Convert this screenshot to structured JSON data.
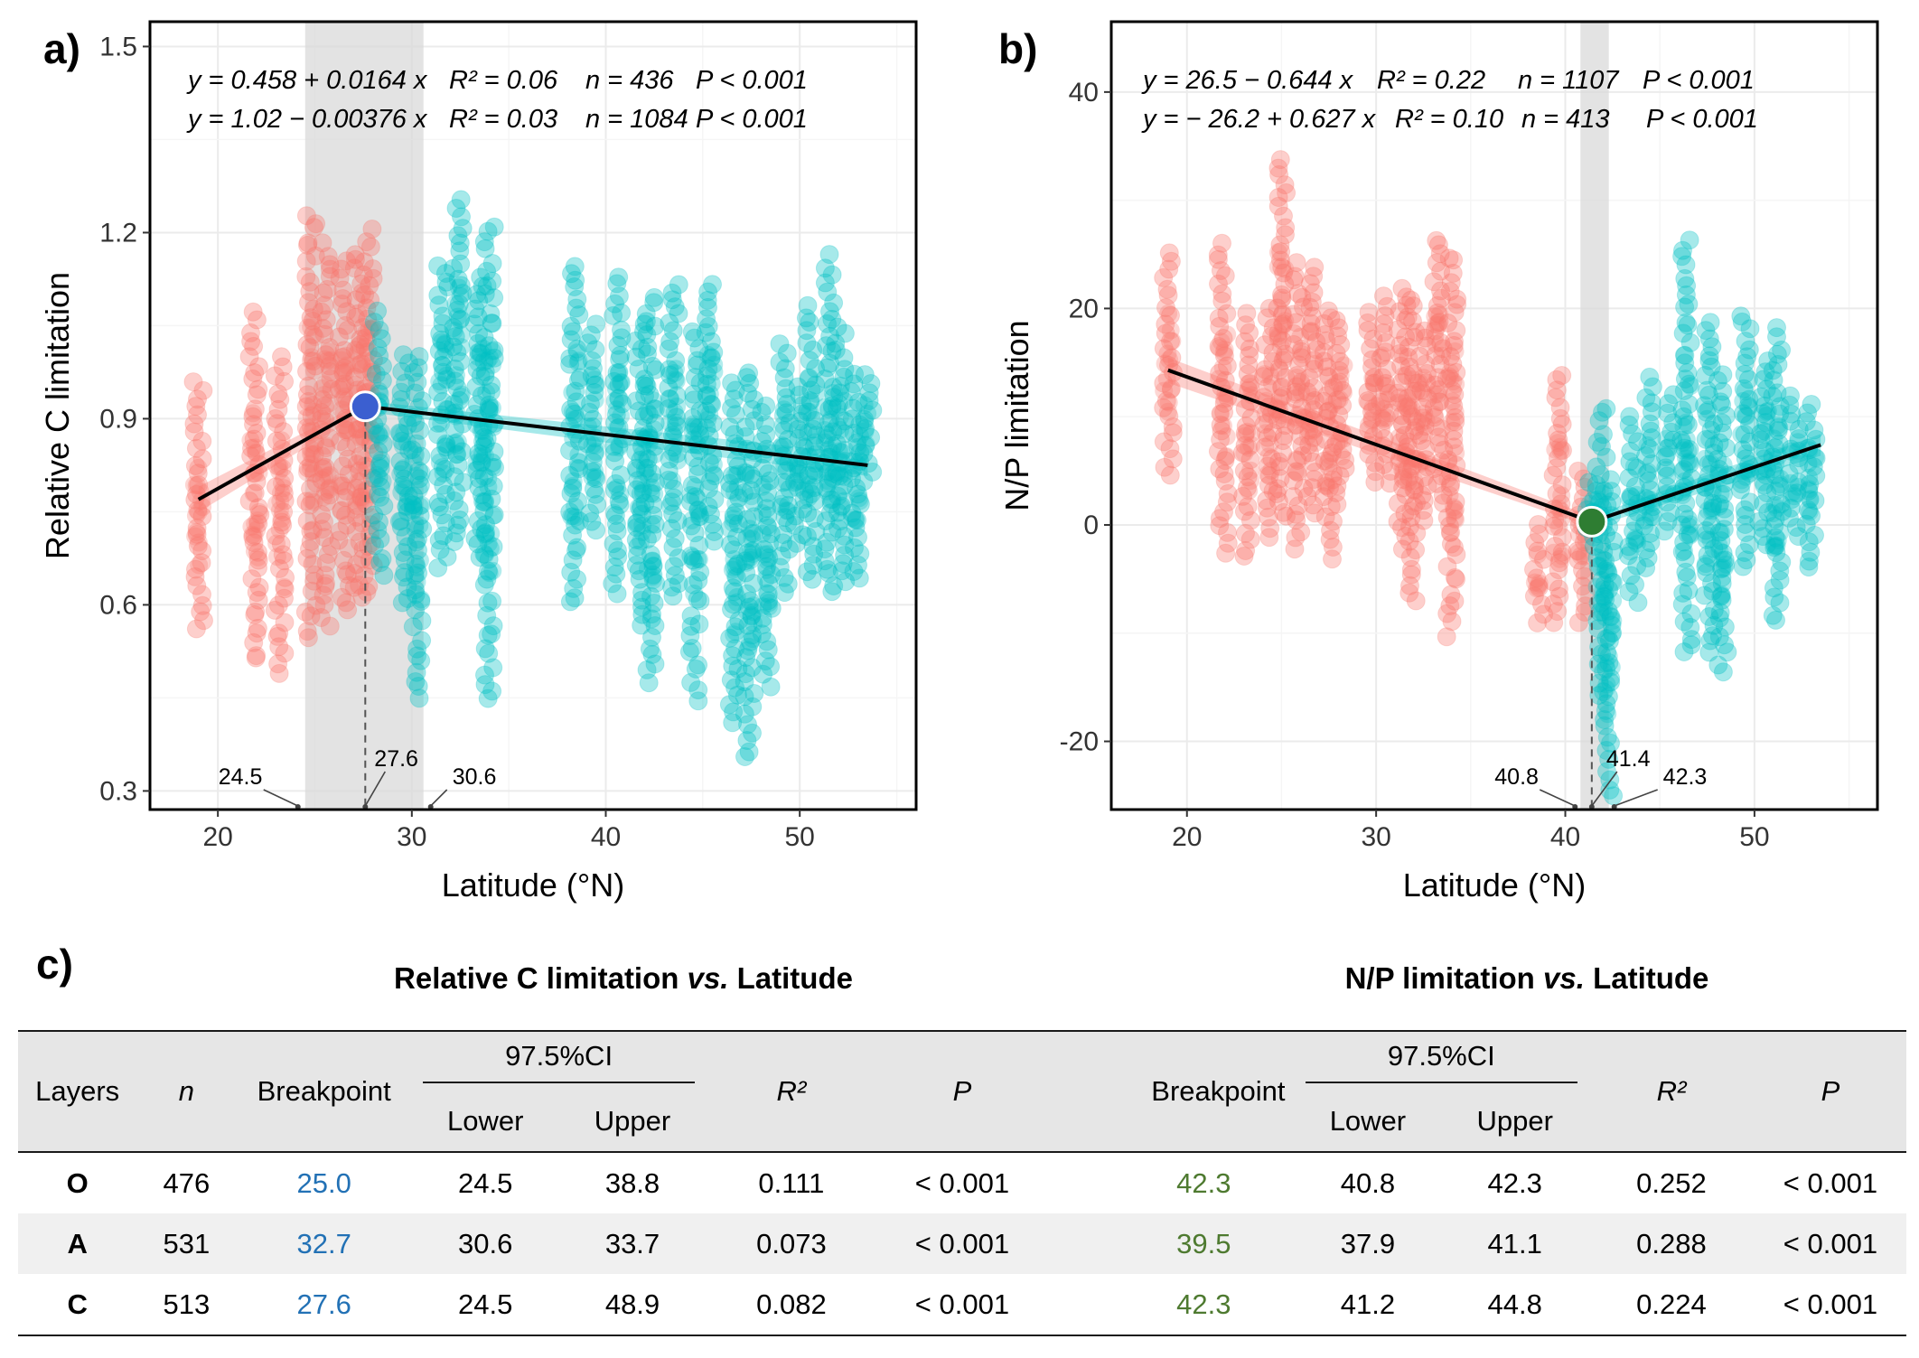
{
  "colors": {
    "red": "#f8766d",
    "cyan": "#00bfc4",
    "break_a": "#3b5fd0",
    "break_b": "#2e7d32",
    "shade": "#d9d9d9",
    "bp_c_text": "#2271b5",
    "bp_np_text": "#4e7a30"
  },
  "chart_data": [
    {
      "panel_label": "a)",
      "type": "scatter",
      "xlabel": "Latitude (°N)",
      "ylabel": "Relative C limitation",
      "xlim": [
        16.5,
        56
      ],
      "ylim": [
        0.27,
        1.54
      ],
      "xticks": [
        20,
        30,
        40,
        50
      ],
      "yticks": [
        0.3,
        0.6,
        0.9,
        1.2,
        1.5
      ],
      "ytick_labels": [
        "0.3",
        "0.6",
        "0.9",
        "1.2",
        "1.5"
      ],
      "grid": true,
      "ci_band": [
        24.5,
        30.6
      ],
      "breakpoint": {
        "x": 27.6,
        "y": 0.92
      },
      "breakpoint_labels": [
        {
          "text": "24.5",
          "x": 24.5
        },
        {
          "text": "27.6",
          "x": 27.6
        },
        {
          "text": "30.6",
          "x": 30.6
        }
      ],
      "equations": [
        {
          "y_eq": "y = 0.458 + 0.0164 x",
          "r2": "R² = 0.06",
          "n": "n = 436",
          "p": "P < 0.001"
        },
        {
          "y_eq": "y = 1.02 − 0.00376 x",
          "r2": "R² = 0.03",
          "n": "n = 1084",
          "p": "P < 0.001"
        }
      ],
      "fit_segments": [
        {
          "x": [
            19,
            27.6
          ],
          "y": [
            0.77,
            0.92
          ]
        },
        {
          "x": [
            27.6,
            53.5
          ],
          "y": [
            0.92,
            0.825
          ]
        }
      ],
      "series": [
        {
          "color_key": "red",
          "columns": [
            {
              "x": 19.0,
              "min": 0.56,
              "max": 0.96
            },
            {
              "x": 21.9,
              "min": 0.51,
              "max": 1.07
            },
            {
              "x": 23.2,
              "min": 0.49,
              "max": 1.0
            },
            {
              "x": 24.8,
              "min": 0.55,
              "max": 1.23
            },
            {
              "x": 25.6,
              "min": 0.57,
              "max": 1.18
            },
            {
              "x": 26.5,
              "min": 0.59,
              "max": 1.15
            },
            {
              "x": 27.3,
              "min": 0.61,
              "max": 1.17
            },
            {
              "x": 27.8,
              "min": 0.62,
              "max": 1.2
            }
          ]
        },
        {
          "color_key": "cyan",
          "columns": [
            {
              "x": 28.3,
              "min": 0.65,
              "max": 1.07
            },
            {
              "x": 29.6,
              "min": 0.6,
              "max": 1.0
            },
            {
              "x": 30.3,
              "min": 0.45,
              "max": 1.0
            },
            {
              "x": 31.6,
              "min": 0.66,
              "max": 1.15
            },
            {
              "x": 32.4,
              "min": 0.7,
              "max": 1.25
            },
            {
              "x": 33.5,
              "min": 0.68,
              "max": 1.13
            },
            {
              "x": 34.0,
              "min": 0.45,
              "max": 1.21
            },
            {
              "x": 38.4,
              "min": 0.6,
              "max": 1.15
            },
            {
              "x": 39.3,
              "min": 0.72,
              "max": 1.05
            },
            {
              "x": 40.6,
              "min": 0.62,
              "max": 1.13
            },
            {
              "x": 41.8,
              "min": 0.57,
              "max": 1.05
            },
            {
              "x": 42.3,
              "min": 0.48,
              "max": 1.1
            },
            {
              "x": 43.5,
              "min": 0.61,
              "max": 1.12
            },
            {
              "x": 44.6,
              "min": 0.45,
              "max": 1.04
            },
            {
              "x": 45.4,
              "min": 0.7,
              "max": 1.12
            },
            {
              "x": 46.6,
              "min": 0.41,
              "max": 0.96
            },
            {
              "x": 47.4,
              "min": 0.35,
              "max": 0.98
            },
            {
              "x": 48.3,
              "min": 0.47,
              "max": 0.92
            },
            {
              "x": 49.2,
              "min": 0.62,
              "max": 1.02
            },
            {
              "x": 50.0,
              "min": 0.7,
              "max": 0.95
            },
            {
              "x": 50.6,
              "min": 0.64,
              "max": 1.08
            },
            {
              "x": 51.5,
              "min": 0.62,
              "max": 1.16
            },
            {
              "x": 52.1,
              "min": 0.64,
              "max": 1.05
            },
            {
              "x": 52.9,
              "min": 0.64,
              "max": 0.97
            },
            {
              "x": 53.5,
              "min": 0.8,
              "max": 0.97
            }
          ]
        }
      ]
    },
    {
      "panel_label": "b)",
      "type": "scatter",
      "xlabel": "Latitude (°N)",
      "ylabel": "N/P limitation",
      "xlim": [
        16,
        56.5
      ],
      "ylim": [
        -26.3,
        46.5
      ],
      "xticks": [
        20,
        30,
        40,
        50
      ],
      "yticks": [
        -20,
        0,
        20,
        40
      ],
      "ytick_labels": [
        "-20",
        "0",
        "20",
        "40"
      ],
      "grid": true,
      "ci_band": [
        40.8,
        42.3
      ],
      "breakpoint": {
        "x": 41.4,
        "y": 0.3
      },
      "breakpoint_labels": [
        {
          "text": "40.8",
          "x": 40.8
        },
        {
          "text": "41.4",
          "x": 41.4
        },
        {
          "text": "42.3",
          "x": 42.3
        }
      ],
      "equations": [
        {
          "y_eq": "y = 26.5 − 0.644 x",
          "r2": "R² = 0.22",
          "n": "n = 1107",
          "p": "P < 0.001"
        },
        {
          "y_eq": "y = − 26.2 + 0.627 x",
          "r2": "R² = 0.10",
          "n": "n = 413",
          "p": "P < 0.001"
        }
      ],
      "fit_segments": [
        {
          "x": [
            19,
            41.4
          ],
          "y": [
            14.3,
            0.3
          ]
        },
        {
          "x": [
            41.4,
            53.5
          ],
          "y": [
            0.3,
            7.4
          ]
        }
      ],
      "series": [
        {
          "color_key": "red",
          "columns": [
            {
              "x": 19.0,
              "min": 4.5,
              "max": 25.0
            },
            {
              "x": 21.9,
              "min": -2.5,
              "max": 26.0
            },
            {
              "x": 23.2,
              "min": -3.0,
              "max": 19.5
            },
            {
              "x": 24.3,
              "min": -1.0,
              "max": 20.0
            },
            {
              "x": 25.0,
              "min": 0.5,
              "max": 34.0
            },
            {
              "x": 25.9,
              "min": -2.0,
              "max": 24.0
            },
            {
              "x": 26.6,
              "min": 1.0,
              "max": 24.0
            },
            {
              "x": 27.5,
              "min": -3.0,
              "max": 20.0
            },
            {
              "x": 28.1,
              "min": 2.0,
              "max": 19.0
            },
            {
              "x": 29.8,
              "min": 4.0,
              "max": 19.5
            },
            {
              "x": 30.5,
              "min": 4.0,
              "max": 21.0
            },
            {
              "x": 31.4,
              "min": -2.0,
              "max": 22.0
            },
            {
              "x": 31.9,
              "min": -7.0,
              "max": 21.0
            },
            {
              "x": 32.5,
              "min": 0.5,
              "max": 18.0
            },
            {
              "x": 33.3,
              "min": 2.0,
              "max": 26.5
            },
            {
              "x": 34.0,
              "min": -10.0,
              "max": 25.0
            },
            {
              "x": 38.6,
              "min": -9.0,
              "max": 0.0
            },
            {
              "x": 39.6,
              "min": -9.0,
              "max": 14.0
            },
            {
              "x": 40.9,
              "min": -9.0,
              "max": 5.0
            }
          ]
        },
        {
          "color_key": "cyan",
          "columns": [
            {
              "x": 41.4,
              "min": -2.0,
              "max": 4.0
            },
            {
              "x": 41.9,
              "min": -16.0,
              "max": 11.0
            },
            {
              "x": 42.3,
              "min": -25.0,
              "max": 4.0
            },
            {
              "x": 43.6,
              "min": -7.0,
              "max": 10.0
            },
            {
              "x": 44.4,
              "min": -4.0,
              "max": 13.5
            },
            {
              "x": 45.5,
              "min": -0.5,
              "max": 12.0
            },
            {
              "x": 46.4,
              "min": -12.0,
              "max": 26.0
            },
            {
              "x": 47.6,
              "min": -11.5,
              "max": 19.0
            },
            {
              "x": 48.3,
              "min": -13.5,
              "max": 14.0
            },
            {
              "x": 49.5,
              "min": -4.0,
              "max": 19.5
            },
            {
              "x": 50.5,
              "min": -2.0,
              "max": 15.0
            },
            {
              "x": 51.2,
              "min": -9.0,
              "max": 18.0
            },
            {
              "x": 52.1,
              "min": -1.0,
              "max": 12.0
            },
            {
              "x": 53.0,
              "min": -4.0,
              "max": 11.0
            }
          ]
        }
      ]
    }
  ],
  "table": {
    "panel_label": "c)",
    "title_c_main": "Relative C limitation",
    "title_c_vs": "vs.",
    "title_c_tail": "Latitude",
    "title_np_main": "N/P limitation",
    "title_np_vs": "vs.",
    "title_np_tail": "Latitude",
    "headers": {
      "layers": "Layers",
      "n": "n",
      "breakpoint": "Breakpoint",
      "ci": "97.5%CI",
      "lower": "Lower",
      "upper": "Upper",
      "r2": "R²",
      "p": "P"
    },
    "rows": [
      {
        "layer": "O",
        "n": "476",
        "c_bp": "25.0",
        "c_lower": "24.5",
        "c_upper": "38.8",
        "c_r2": "0.111",
        "c_p": "< 0.001",
        "np_bp": "42.3",
        "np_lower": "40.8",
        "np_upper": "42.3",
        "np_r2": "0.252",
        "np_p": "< 0.001"
      },
      {
        "layer": "A",
        "n": "531",
        "c_bp": "32.7",
        "c_lower": "30.6",
        "c_upper": "33.7",
        "c_r2": "0.073",
        "c_p": "< 0.001",
        "np_bp": "39.5",
        "np_lower": "37.9",
        "np_upper": "41.1",
        "np_r2": "0.288",
        "np_p": "< 0.001"
      },
      {
        "layer": "C",
        "n": "513",
        "c_bp": "27.6",
        "c_lower": "24.5",
        "c_upper": "48.9",
        "c_r2": "0.082",
        "c_p": "< 0.001",
        "np_bp": "42.3",
        "np_lower": "41.2",
        "np_upper": "44.8",
        "np_r2": "0.224",
        "np_p": "< 0.001"
      }
    ]
  }
}
